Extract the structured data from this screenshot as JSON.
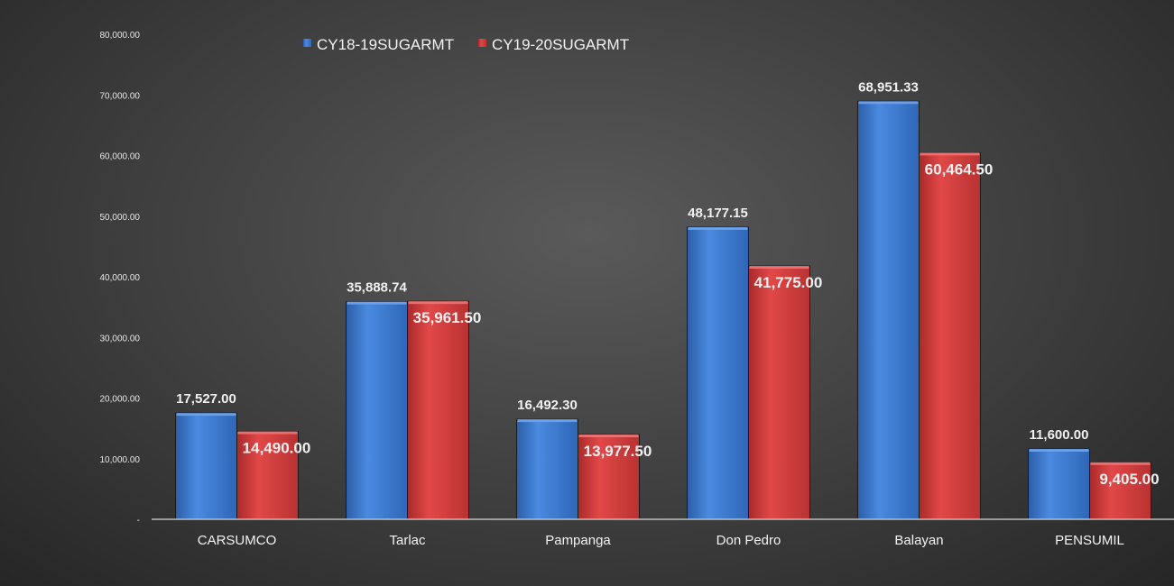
{
  "chart_data": {
    "type": "bar",
    "categories": [
      "CARSUMCO",
      "Tarlac",
      "Pampanga",
      "Don Pedro",
      "Balayan",
      "PENSUMIL"
    ],
    "series": [
      {
        "name": "CY18-19SUGARMT",
        "values": [
          17527.0,
          35888.74,
          16492.3,
          48177.15,
          68951.33,
          11600.0
        ],
        "labels": [
          "17,527.00",
          "35,888.74",
          "16,492.30",
          "48,177.15",
          "68,951.33",
          "11,600.00"
        ],
        "color": "#3a78cf"
      },
      {
        "name": "CY19-20SUGARMT",
        "values": [
          14490.0,
          35961.5,
          13977.5,
          41775.0,
          60464.5,
          9405.0
        ],
        "labels": [
          "14,490.00",
          "35,961.50",
          "13,977.50",
          "41,775.00",
          "60,464.50",
          "9,405.00"
        ],
        "color": "#d23f3f"
      }
    ],
    "y_ticks": [
      "-",
      "10,000.00",
      "20,000.00",
      "30,000.00",
      "40,000.00",
      "50,000.00",
      "60,000.00",
      "70,000.00",
      "80,000.00"
    ],
    "ylim": [
      0,
      80000
    ],
    "grid": false,
    "legend_position": "top-left"
  }
}
